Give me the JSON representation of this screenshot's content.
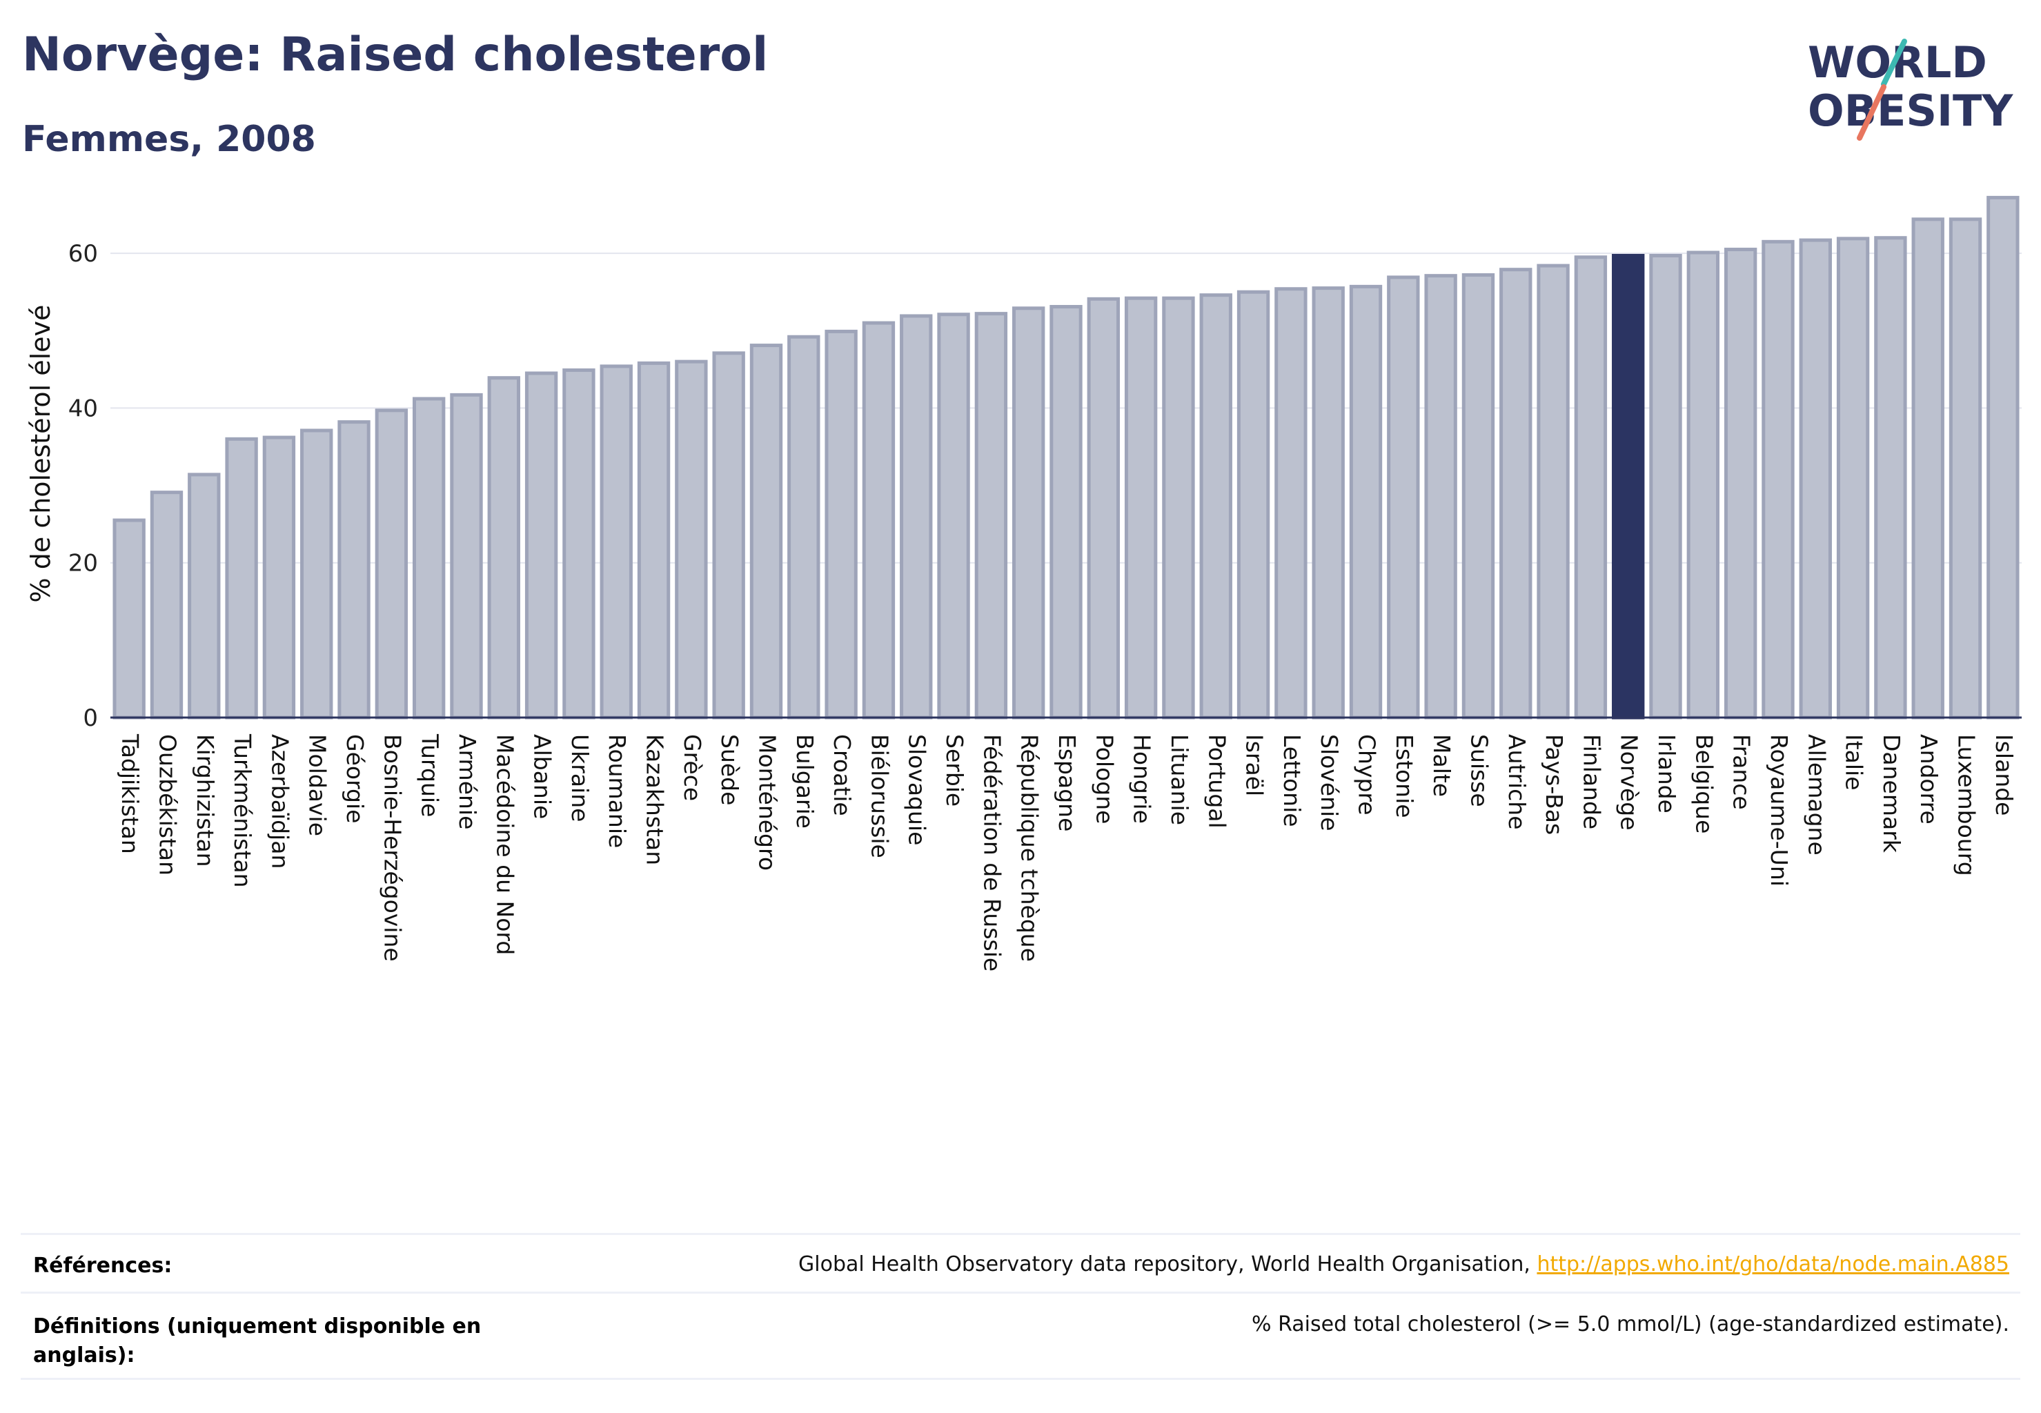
{
  "title": "Norvège: Raised cholesterol",
  "subtitle": "Femmes, 2008",
  "logo": {
    "line1": "WORLD",
    "line2": "OBESITY",
    "name": "world-obesity-logo"
  },
  "colors": {
    "highlight": "#2b3462",
    "bar": "#bcc1cf",
    "bar_edge": "#9ea4b9",
    "accent_teal": "#3db9b2",
    "accent_coral": "#e8765f",
    "link": "#f2a900"
  },
  "footer": {
    "references_label": "Références:",
    "references_text": "Global Health Observatory data repository, World Health Organisation, ",
    "references_link": "http://apps.who.int/gho/data/node.main.A885",
    "definitions_label": "Définitions (uniquement disponible en anglais):",
    "definitions_text": "% Raised total cholesterol (>= 5.0 mmol/L) (age-standardized estimate)."
  },
  "chart_data": {
    "type": "bar",
    "ylabel": "% de cholestérol élevé",
    "xlabel": "",
    "ylim": [
      0,
      70
    ],
    "yticks": [
      0,
      20,
      40,
      60
    ],
    "grid": true,
    "highlight": "Norvège",
    "categories": [
      "Tadjikistan",
      "Ouzbékistan",
      "Kirghizistan",
      "Turkménistan",
      "Azerbaïdjan",
      "Moldavie",
      "Géorgie",
      "Bosnie-Herzégovine",
      "Turquie",
      "Arménie",
      "Macédoine du Nord",
      "Albanie",
      "Ukraine",
      "Roumanie",
      "Kazakhstan",
      "Grèce",
      "Suède",
      "Monténégro",
      "Bulgarie",
      "Croatie",
      "Biélorussie",
      "Slovaquie",
      "Serbie",
      "Fédération de Russie",
      "République tchèque",
      "Espagne",
      "Pologne",
      "Hongrie",
      "Lituanie",
      "Portugal",
      "Israël",
      "Lettonie",
      "Slovénie",
      "Chypre",
      "Estonie",
      "Malte",
      "Suisse",
      "Autriche",
      "Pays-Bas",
      "Finlande",
      "Norvège",
      "Irlande",
      "Belgique",
      "France",
      "Royaume-Uni",
      "Allemagne",
      "Italie",
      "Danemark",
      "Andorre",
      "Luxembourg",
      "Islande"
    ],
    "values": [
      25.5,
      29.1,
      31.4,
      36.0,
      36.2,
      37.1,
      38.2,
      39.7,
      41.2,
      41.7,
      43.9,
      44.5,
      44.9,
      45.4,
      45.8,
      46.0,
      47.1,
      48.1,
      49.2,
      49.9,
      51.0,
      51.9,
      52.1,
      52.2,
      52.9,
      53.1,
      54.1,
      54.2,
      54.2,
      54.6,
      55.0,
      55.4,
      55.5,
      55.7,
      56.9,
      57.1,
      57.2,
      57.9,
      58.4,
      59.5,
      59.7,
      59.7,
      60.1,
      60.5,
      61.5,
      61.7,
      61.9,
      62.0,
      64.4,
      64.4,
      67.2
    ]
  }
}
